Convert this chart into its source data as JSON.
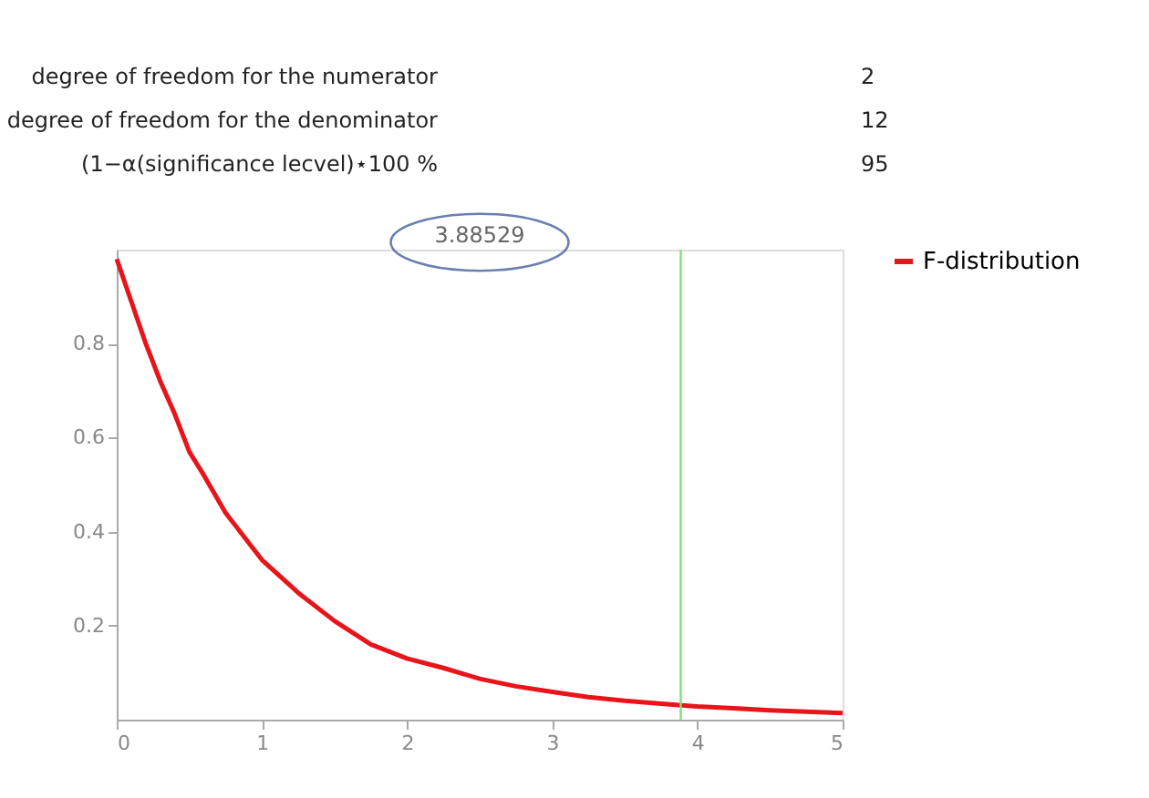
{
  "chart_data": {
    "type": "line",
    "x": [
      0,
      0.1,
      0.2,
      0.3,
      0.4,
      0.5,
      0.6,
      0.75,
      0.9,
      1,
      1.25,
      1.5,
      1.75,
      2,
      2.25,
      2.5,
      2.75,
      3,
      3.25,
      3.5,
      3.75,
      4,
      4.25,
      4.5,
      4.75,
      5
    ],
    "series": [
      {
        "name": "F-distribution",
        "color": "#e8141a",
        "values": [
          0.98,
          0.89,
          0.8,
          0.72,
          0.65,
          0.57,
          0.52,
          0.44,
          0.38,
          0.34,
          0.27,
          0.21,
          0.16,
          0.13,
          0.11,
          0.087,
          0.071,
          0.059,
          0.048,
          0.04,
          0.034,
          0.028,
          0.024,
          0.02,
          0.017,
          0.014
        ]
      }
    ],
    "xlim": [
      0,
      5
    ],
    "ylim": [
      0,
      1
    ],
    "xticks": [
      0,
      1,
      2,
      3,
      4,
      5
    ],
    "yticks": [
      0.2,
      0.4,
      0.6,
      0.8
    ],
    "ref_lines": [
      {
        "axis": "x",
        "value": 3.88529,
        "color": "#7fe07f"
      }
    ],
    "annotations": [
      "degree of freedom for the numerator",
      "2",
      "degree of freedom for the denominator",
      "12",
      "(1−α(significance lecvel)⋆100 %",
      "95",
      "3.88529"
    ],
    "legend": "right",
    "grid": false,
    "marker": "none",
    "line_style": "solid"
  }
}
